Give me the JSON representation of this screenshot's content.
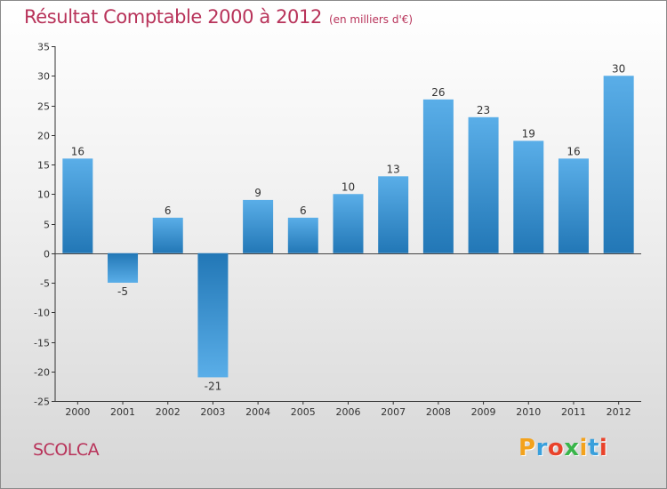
{
  "header": {
    "title": "Résultat Comptable 2000 à 2012",
    "subtitle": "(en milliers d'€)"
  },
  "footer": {
    "commune": "SCOLCA",
    "brand": "Proxiti",
    "brand_letters": [
      {
        "char": "P",
        "color": "#f3a21c"
      },
      {
        "char": "r",
        "color": "#3aa0dc"
      },
      {
        "char": "o",
        "color": "#e9432b"
      },
      {
        "char": "x",
        "color": "#39b54a"
      },
      {
        "char": "i",
        "color": "#f3a21c"
      },
      {
        "char": "t",
        "color": "#3aa0dc"
      },
      {
        "char": "i",
        "color": "#e9432b"
      }
    ]
  },
  "chart_data": {
    "type": "bar",
    "title": "Résultat Comptable 2000 à 2012",
    "xlabel": "",
    "ylabel": "",
    "categories": [
      "2000",
      "2001",
      "2002",
      "2003",
      "2004",
      "2005",
      "2006",
      "2007",
      "2008",
      "2009",
      "2010",
      "2011",
      "2012"
    ],
    "values": [
      16,
      -5,
      6,
      -21,
      9,
      6,
      10,
      13,
      26,
      23,
      19,
      16,
      30
    ],
    "data_labels": [
      "16",
      "-5",
      "6",
      "-21",
      "9",
      "6",
      "10",
      "13",
      "26",
      "23",
      "19",
      "16",
      "30"
    ],
    "ylim": [
      -25,
      35
    ],
    "yticks": [
      35,
      30,
      25,
      20,
      15,
      10,
      5,
      0,
      -5,
      -10,
      -15,
      -20,
      -25
    ],
    "ytick_labels": [
      "35",
      "30",
      "25",
      "20",
      "15",
      "10",
      "5",
      "0",
      "-5",
      "-10",
      "-15",
      "-20",
      "-25"
    ],
    "grid": false,
    "colors": {
      "bar_light": "#5aaee8",
      "bar_dark": "#2277b6",
      "axis": "#333333"
    }
  }
}
